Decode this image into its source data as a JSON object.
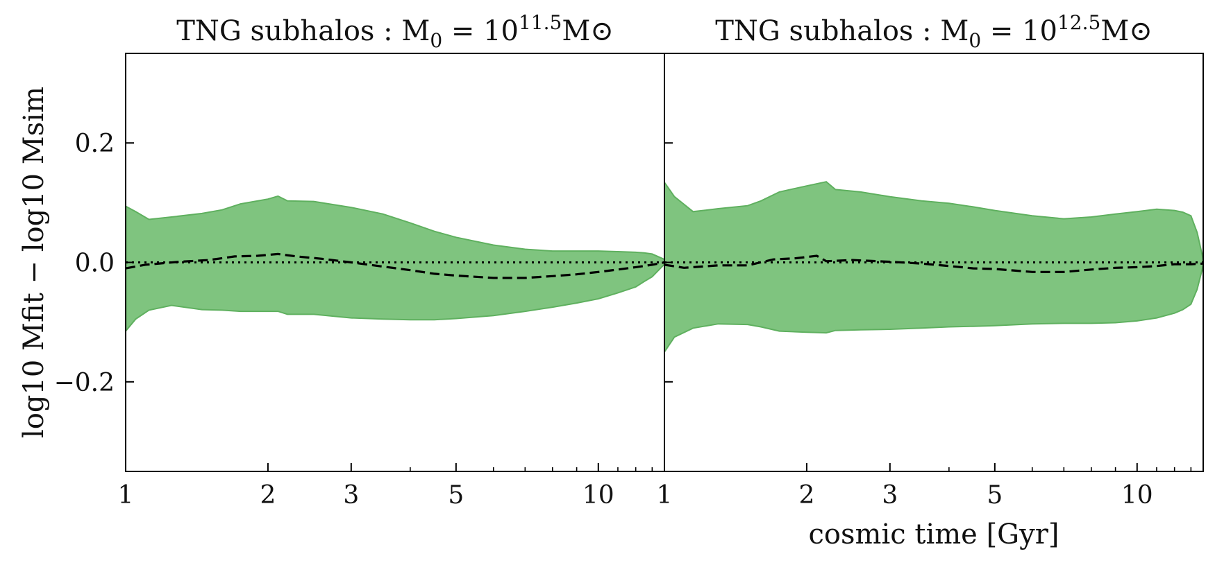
{
  "chart_data": [
    {
      "type": "area",
      "title_prefix": "TNG subhalos :  M",
      "title_sub": "0",
      "title_mid": " = 10",
      "title_sup": "11.5",
      "title_suffix": "M⊙",
      "xscale": "log",
      "xlim": [
        1,
        13.8
      ],
      "ylim": [
        -0.35,
        0.35
      ],
      "xticks": [
        1,
        2,
        3,
        5,
        10
      ],
      "xtick_labels": [
        "1",
        "2",
        "3",
        "5",
        "10"
      ],
      "yticks": [
        -0.2,
        0.0,
        0.2
      ],
      "ytick_labels": [
        "−0.2",
        "0.0",
        "0.2"
      ],
      "ylabel": "log10 Mfit − log10 Msim",
      "xlabel": "",
      "band_color": "#7fc47f",
      "band_edge_color": "#5fb05f",
      "band": {
        "x": [
          1.0,
          1.05,
          1.12,
          1.25,
          1.45,
          1.6,
          1.75,
          2.0,
          2.1,
          2.2,
          2.5,
          3.0,
          3.5,
          4.0,
          4.5,
          5.0,
          6.0,
          7.0,
          8.0,
          9.0,
          10.0,
          11.0,
          12.0,
          12.5,
          13.0,
          13.8
        ],
        "upper": [
          0.094,
          0.085,
          0.072,
          0.076,
          0.082,
          0.088,
          0.098,
          0.106,
          0.111,
          0.103,
          0.102,
          0.092,
          0.081,
          0.066,
          0.052,
          0.042,
          0.029,
          0.022,
          0.019,
          0.019,
          0.019,
          0.018,
          0.017,
          0.016,
          0.014,
          0.005
        ],
        "lower": [
          -0.115,
          -0.095,
          -0.08,
          -0.072,
          -0.079,
          -0.08,
          -0.082,
          -0.082,
          -0.082,
          -0.087,
          -0.087,
          -0.093,
          -0.095,
          -0.096,
          -0.096,
          -0.094,
          -0.089,
          -0.082,
          -0.075,
          -0.068,
          -0.061,
          -0.051,
          -0.041,
          -0.032,
          -0.024,
          -0.003
        ]
      },
      "median": {
        "x": [
          1.0,
          1.1,
          1.3,
          1.5,
          1.7,
          1.9,
          2.1,
          2.3,
          2.6,
          3.0,
          3.5,
          4.0,
          4.5,
          5.0,
          6.0,
          7.0,
          8.0,
          9.0,
          10.0,
          11.0,
          12.0,
          13.0,
          13.8
        ],
        "y": [
          -0.01,
          -0.004,
          0.001,
          0.004,
          0.01,
          0.011,
          0.014,
          0.01,
          0.006,
          0.0,
          -0.007,
          -0.013,
          -0.019,
          -0.022,
          -0.026,
          -0.026,
          -0.023,
          -0.02,
          -0.016,
          -0.012,
          -0.008,
          -0.004,
          0.0
        ]
      },
      "reference_line": 0.0
    },
    {
      "type": "area",
      "title_prefix": "TNG subhalos :  M",
      "title_sub": "0",
      "title_mid": " = 10",
      "title_sup": "12.5",
      "title_suffix": "M⊙",
      "xscale": "log",
      "xlim": [
        1,
        13.8
      ],
      "ylim": [
        -0.35,
        0.35
      ],
      "xticks": [
        1,
        2,
        3,
        5,
        10
      ],
      "xtick_labels": [
        "1",
        "2",
        "3",
        "5",
        "10"
      ],
      "yticks": [
        -0.2,
        0.0,
        0.2
      ],
      "ytick_labels": [
        "",
        "",
        ""
      ],
      "ylabel": "",
      "xlabel": "cosmic time [Gyr]",
      "band_color": "#7fc47f",
      "band_edge_color": "#5fb05f",
      "band": {
        "x": [
          1.0,
          1.05,
          1.15,
          1.3,
          1.5,
          1.6,
          1.75,
          2.0,
          2.2,
          2.3,
          2.6,
          3.0,
          3.5,
          4.0,
          4.5,
          5.0,
          6.0,
          7.0,
          8.0,
          9.0,
          10.0,
          11.0,
          12.0,
          12.5,
          13.0,
          13.4,
          13.8
        ],
        "upper": [
          0.134,
          0.11,
          0.085,
          0.09,
          0.095,
          0.103,
          0.118,
          0.128,
          0.135,
          0.122,
          0.118,
          0.11,
          0.103,
          0.099,
          0.093,
          0.087,
          0.078,
          0.073,
          0.076,
          0.081,
          0.085,
          0.089,
          0.087,
          0.084,
          0.078,
          0.05,
          0.005
        ],
        "lower": [
          -0.15,
          -0.125,
          -0.11,
          -0.103,
          -0.104,
          -0.108,
          -0.115,
          -0.117,
          -0.118,
          -0.114,
          -0.113,
          -0.112,
          -0.11,
          -0.108,
          -0.107,
          -0.106,
          -0.103,
          -0.102,
          -0.102,
          -0.101,
          -0.098,
          -0.093,
          -0.085,
          -0.079,
          -0.07,
          -0.045,
          -0.005
        ]
      },
      "median": {
        "x": [
          1.0,
          1.1,
          1.3,
          1.5,
          1.7,
          1.9,
          2.1,
          2.2,
          2.5,
          3.0,
          3.5,
          4.0,
          4.5,
          5.0,
          6.0,
          7.0,
          8.0,
          9.0,
          10.0,
          11.0,
          12.0,
          13.0,
          13.8
        ],
        "y": [
          -0.004,
          -0.009,
          -0.005,
          -0.005,
          0.005,
          0.007,
          0.011,
          0.002,
          0.004,
          0.001,
          -0.002,
          -0.006,
          -0.01,
          -0.011,
          -0.016,
          -0.016,
          -0.012,
          -0.009,
          -0.008,
          -0.006,
          -0.003,
          -0.003,
          -0.002
        ]
      },
      "reference_line": 0.0
    }
  ]
}
